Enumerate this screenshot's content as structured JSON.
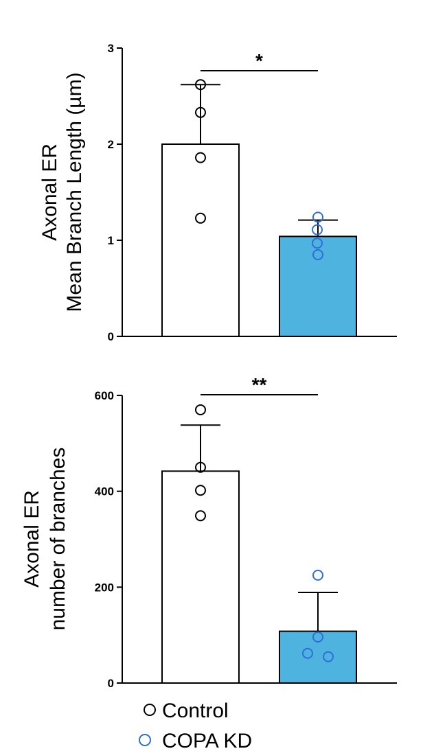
{
  "chart_data": [
    {
      "type": "bar",
      "title": "",
      "ylabel_lines": [
        "Axonal ER",
        "Mean Branch Length (µm)"
      ],
      "ylim": [
        0,
        3
      ],
      "yticks": [
        0,
        1,
        2,
        3
      ],
      "categories": [
        "Control",
        "COPA KD"
      ],
      "values": [
        2.0,
        1.04
      ],
      "error_upper": [
        2.62,
        1.21
      ],
      "points": [
        [
          2.62,
          2.33,
          1.86,
          1.23
        ],
        [
          1.24,
          1.11,
          0.97,
          0.85
        ]
      ],
      "significance": {
        "between": [
          0,
          1
        ],
        "label": "*"
      },
      "grid": false
    },
    {
      "type": "bar",
      "title": "",
      "ylabel_lines": [
        "Axonal ER",
        "number of branches"
      ],
      "ylim": [
        0,
        600
      ],
      "yticks": [
        0,
        200,
        400,
        600
      ],
      "categories": [
        "Control",
        "COPA KD"
      ],
      "values": [
        442,
        108
      ],
      "error_upper": [
        538,
        189
      ],
      "points": [
        [
          570,
          450,
          402,
          349
        ],
        [
          225,
          96,
          62,
          55
        ]
      ],
      "significance": {
        "between": [
          0,
          1
        ],
        "label": "**"
      },
      "grid": false
    }
  ],
  "legend": {
    "placement": "bottom-left",
    "items": [
      {
        "label": "Control",
        "marker_color": "#000000"
      },
      {
        "label": "COPA KD",
        "marker_color": "#2d6fd6"
      }
    ]
  },
  "colors": {
    "control_fill": "#ffffff",
    "kd_fill": "#4fb3e0",
    "control_point": "#000000",
    "kd_point": "#2d6fd6",
    "axis": "#000000"
  }
}
